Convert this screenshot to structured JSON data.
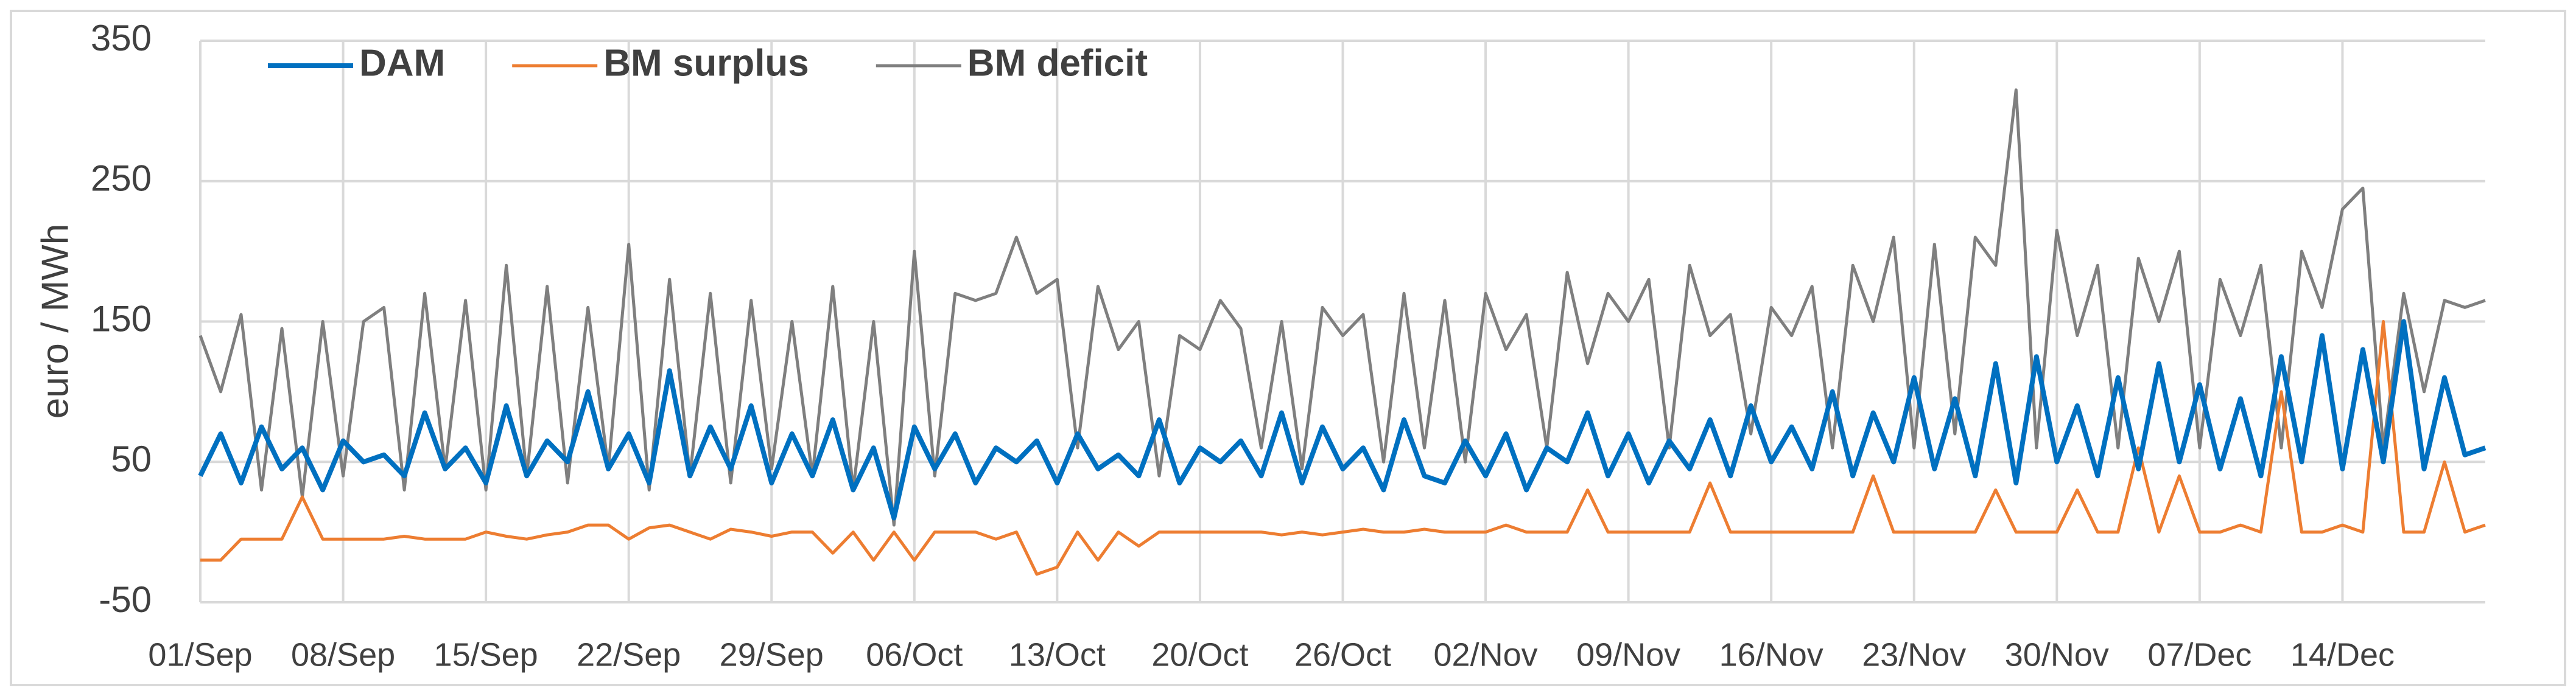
{
  "chart_data": {
    "type": "line",
    "ylabel": "euro / MWh",
    "categories": [
      "01/Sep",
      null,
      null,
      null,
      null,
      null,
      null,
      "08/Sep",
      null,
      null,
      null,
      null,
      null,
      null,
      "15/Sep",
      null,
      null,
      null,
      null,
      null,
      null,
      "22/Sep",
      null,
      null,
      null,
      null,
      null,
      null,
      "29/Sep",
      null,
      null,
      null,
      null,
      null,
      null,
      "06/Oct",
      null,
      null,
      null,
      null,
      null,
      null,
      "13/Oct",
      null,
      null,
      null,
      null,
      null,
      null,
      "20/Oct",
      null,
      null,
      null,
      null,
      null,
      null,
      "26/Oct",
      null,
      null,
      null,
      null,
      null,
      null,
      "02/Nov",
      null,
      null,
      null,
      null,
      null,
      null,
      "09/Nov",
      null,
      null,
      null,
      null,
      null,
      null,
      "16/Nov",
      null,
      null,
      null,
      null,
      null,
      null,
      "23/Nov",
      null,
      null,
      null,
      null,
      null,
      null,
      "30/Nov",
      null,
      null,
      null,
      null,
      null,
      null,
      "07/Dec",
      null,
      null,
      null,
      null,
      null,
      null,
      "14/Dec",
      null,
      null,
      null,
      null,
      null,
      null,
      null
    ],
    "series": [
      {
        "name": "DAM",
        "color": "#0070c0",
        "values": [
          40,
          70,
          35,
          75,
          45,
          60,
          30,
          65,
          50,
          55,
          40,
          85,
          45,
          60,
          35,
          90,
          40,
          65,
          50,
          100,
          45,
          70,
          35,
          115,
          40,
          75,
          45,
          90,
          35,
          70,
          40,
          80,
          30,
          60,
          10,
          75,
          45,
          70,
          35,
          60,
          50,
          65,
          35,
          70,
          45,
          55,
          40,
          80,
          35,
          60,
          50,
          65,
          40,
          85,
          35,
          75,
          45,
          60,
          30,
          80,
          40,
          35,
          65,
          40,
          70,
          30,
          60,
          50,
          85,
          40,
          70,
          35,
          65,
          45,
          80,
          40,
          90,
          50,
          75,
          45,
          100,
          40,
          85,
          50,
          110,
          45,
          95,
          40,
          120,
          35,
          125,
          50,
          90,
          40,
          110,
          45,
          120,
          50,
          105,
          45,
          95,
          40,
          125,
          50,
          140,
          45,
          130,
          50,
          150,
          45,
          110,
          55,
          60
        ]
      },
      {
        "name": "BM surplus",
        "color": "#ed7d31",
        "values": [
          -20,
          -20,
          -5,
          -5,
          -5,
          25,
          -5,
          -5,
          -5,
          -5,
          -3,
          -5,
          -5,
          -5,
          0,
          -3,
          -5,
          -2,
          0,
          5,
          5,
          -5,
          3,
          5,
          0,
          -5,
          2,
          0,
          -3,
          0,
          0,
          -15,
          0,
          -20,
          0,
          -20,
          0,
          0,
          0,
          -5,
          0,
          -30,
          -25,
          0,
          -20,
          0,
          -10,
          0,
          0,
          0,
          0,
          0,
          0,
          -2,
          0,
          -2,
          0,
          2,
          0,
          0,
          2,
          0,
          0,
          0,
          5,
          0,
          0,
          0,
          30,
          0,
          0,
          0,
          0,
          0,
          35,
          0,
          0,
          0,
          0,
          0,
          0,
          0,
          40,
          0,
          0,
          0,
          0,
          0,
          30,
          0,
          0,
          0,
          30,
          0,
          0,
          60,
          0,
          40,
          0,
          0,
          5,
          0,
          100,
          0,
          0,
          5,
          0,
          150,
          0,
          0,
          50,
          0,
          5
        ]
      },
      {
        "name": "BM deficit",
        "color": "#7f7f7f",
        "values": [
          140,
          100,
          155,
          30,
          145,
          25,
          150,
          40,
          150,
          160,
          30,
          170,
          45,
          165,
          30,
          190,
          40,
          175,
          35,
          160,
          45,
          205,
          30,
          180,
          40,
          170,
          35,
          165,
          45,
          150,
          40,
          175,
          30,
          150,
          5,
          200,
          40,
          170,
          165,
          170,
          210,
          170,
          180,
          60,
          175,
          130,
          150,
          40,
          140,
          130,
          165,
          145,
          60,
          150,
          45,
          160,
          140,
          155,
          50,
          170,
          60,
          165,
          50,
          170,
          130,
          155,
          60,
          185,
          120,
          170,
          150,
          180,
          60,
          190,
          140,
          155,
          70,
          160,
          140,
          175,
          60,
          190,
          150,
          210,
          60,
          205,
          70,
          210,
          190,
          315,
          60,
          215,
          140,
          190,
          60,
          195,
          150,
          200,
          60,
          180,
          140,
          190,
          60,
          200,
          160,
          230,
          245,
          60,
          170,
          100,
          165,
          160,
          165
        ]
      }
    ],
    "ylim": [
      -50,
      350
    ],
    "yticks": [
      -50,
      50,
      150,
      250,
      350
    ],
    "grid": true,
    "legend": "top-left"
  }
}
